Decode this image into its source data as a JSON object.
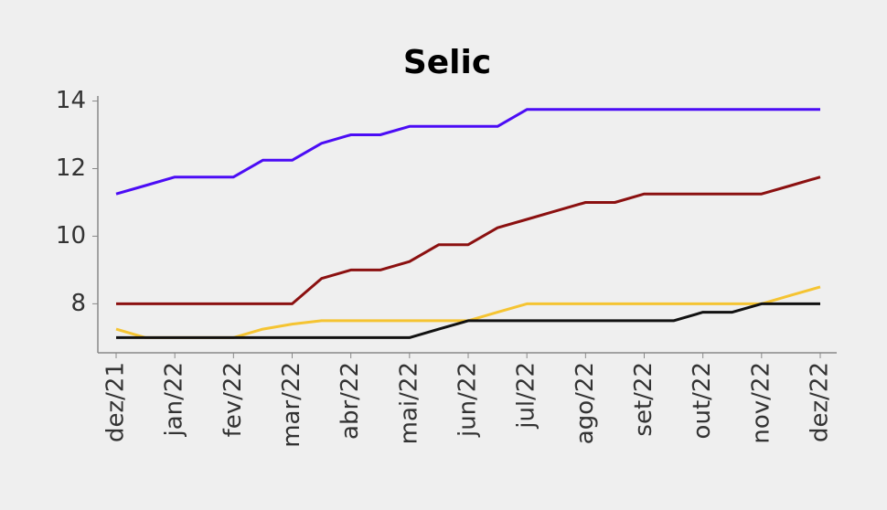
{
  "chart_data": {
    "type": "line",
    "title": "Selic",
    "categories": [
      "dez/21",
      null,
      "jan/22",
      null,
      "fev/22",
      null,
      "mar/22",
      null,
      "abr/22",
      null,
      "mai/22",
      null,
      "jun/22",
      null,
      "jul/22",
      null,
      "ago/22",
      null,
      "set/22",
      null,
      "out/22",
      null,
      "nov/22",
      null,
      "dez/22"
    ],
    "series": [
      {
        "color": "#4b0cf5",
        "values": [
          11.25,
          11.5,
          11.75,
          11.75,
          11.75,
          12.25,
          12.25,
          12.75,
          13,
          13,
          13.25,
          13.25,
          13.25,
          13.25,
          13.75,
          13.75,
          13.75,
          13.75,
          13.75,
          13.75,
          13.75,
          13.75,
          13.75,
          13.75,
          13.75
        ]
      },
      {
        "color": "#8b1010",
        "values": [
          8,
          8,
          8,
          8,
          8,
          8,
          8,
          8.75,
          9,
          9,
          9.25,
          9.75,
          9.75,
          10.25,
          10.5,
          10.75,
          11,
          11,
          11.25,
          11.25,
          11.25,
          11.25,
          11.25,
          11.5,
          11.75
        ]
      },
      {
        "color": "#f5c432",
        "values": [
          7.25,
          7,
          7,
          7,
          7,
          7.25,
          7.4,
          7.5,
          7.5,
          7.5,
          7.5,
          7.5,
          7.5,
          7.75,
          8,
          8,
          8,
          8,
          8,
          8,
          8,
          8,
          8,
          8.25,
          8.5
        ]
      },
      {
        "color": "#111111",
        "values": [
          7,
          7,
          7,
          7,
          7,
          7,
          7,
          7,
          7,
          7,
          7,
          7.25,
          7.5,
          7.5,
          7.5,
          7.5,
          7.5,
          7.5,
          7.5,
          7.5,
          7.75,
          7.75,
          8,
          8,
          8
        ]
      }
    ],
    "ylim": [
      6.55,
      14.15
    ],
    "yticks": [
      8,
      10,
      12,
      14
    ]
  }
}
